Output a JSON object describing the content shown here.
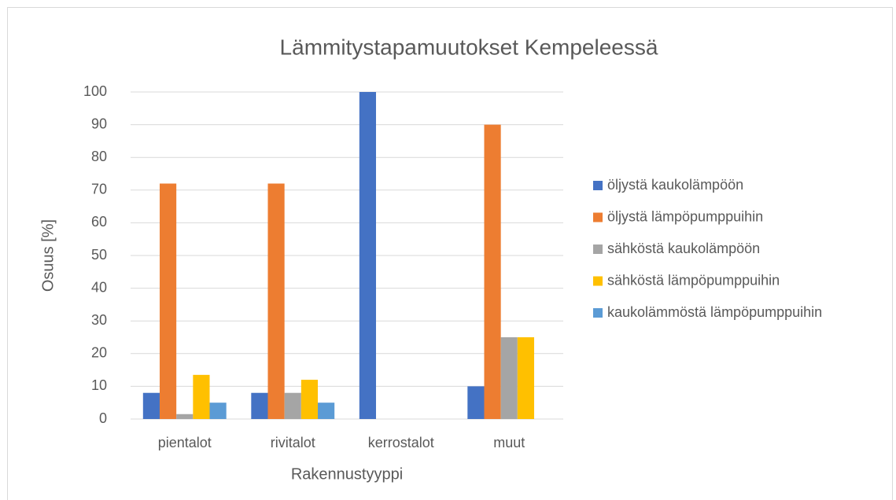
{
  "chart_data": {
    "type": "bar",
    "title": "Lämmitystapamuutokset Kempeleessä",
    "xlabel": "Rakennustyyppi",
    "ylabel": "Osuus [%]",
    "categories": [
      "pientalot",
      "rivitalot",
      "kerrostalot",
      "muut"
    ],
    "series": [
      {
        "name": "öljystä kaukolämpöön",
        "color": "#4472c4",
        "values": [
          8,
          8,
          100,
          10
        ]
      },
      {
        "name": "öljystä lämpöpumppuihin",
        "color": "#ed7d31",
        "values": [
          72,
          72,
          0,
          90
        ]
      },
      {
        "name": "sähköstä kaukolämpöön",
        "color": "#a5a5a5",
        "values": [
          1.5,
          8,
          0,
          25
        ]
      },
      {
        "name": "sähköstä lämpöpumppuihin",
        "color": "#ffc000",
        "values": [
          13.5,
          12,
          0,
          25
        ]
      },
      {
        "name": "kaukolämmöstä lämpöpumppuihin",
        "color": "#5b9bd5",
        "values": [
          5,
          5,
          0,
          0
        ]
      }
    ],
    "ylim": [
      0,
      100
    ],
    "yticks": [
      0,
      10,
      20,
      30,
      40,
      50,
      60,
      70,
      80,
      90,
      100
    ],
    "grid": true,
    "legend": "right"
  }
}
